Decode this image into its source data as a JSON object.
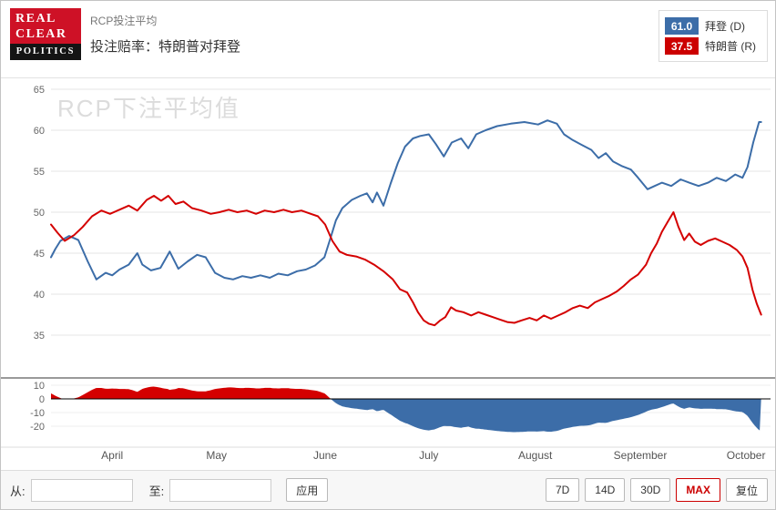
{
  "header": {
    "logo": {
      "line1": "REAL",
      "line2": "CLEAR",
      "line3": "POLITICS",
      "red": "#ce1126",
      "black": "#141414"
    },
    "subtitle": "RCP投注平均",
    "title": "投注赔率：特朗普对拜登",
    "legend": [
      {
        "value": "61.0",
        "label": "拜登 (D)",
        "color": "#3c6da8"
      },
      {
        "value": "37.5",
        "label": "特朗普 (R)",
        "color": "#cc0000"
      }
    ]
  },
  "watermark": "RCP下注平均值",
  "controls": {
    "from_label": "从:",
    "from_value": "",
    "to_label": "至:",
    "to_value": "",
    "apply_label": "应用",
    "range_buttons": [
      "7D",
      "14D",
      "30D",
      "MAX",
      "复位"
    ],
    "active_range": "MAX"
  },
  "chart_data": {
    "type": "line",
    "title": "RCP下注平均值",
    "x_axis": {
      "labels": [
        "April",
        "May",
        "June",
        "July",
        "August",
        "September",
        "October"
      ],
      "positions": [
        8.5,
        23.0,
        38.1,
        52.5,
        67.3,
        81.9,
        96.6
      ]
    },
    "main_y": {
      "ticks": [
        65,
        60,
        55,
        50,
        45,
        40,
        35
      ],
      "min": 35,
      "max": 65
    },
    "spread_y": {
      "ticks": [
        10,
        0,
        -10,
        -20
      ],
      "min": -25,
      "max": 12
    },
    "series": [
      {
        "name": "拜登 (D)",
        "color": "#3c6da8",
        "current": 61.0,
        "points": [
          [
            0,
            44.5
          ],
          [
            0.6,
            45.5
          ],
          [
            1.3,
            46.5
          ],
          [
            2.5,
            47.1
          ],
          [
            3.8,
            46.6
          ],
          [
            5.1,
            44.0
          ],
          [
            6.3,
            41.8
          ],
          [
            7.6,
            42.6
          ],
          [
            8.5,
            42.3
          ],
          [
            9.5,
            43.0
          ],
          [
            10.8,
            43.6
          ],
          [
            12.0,
            45.0
          ],
          [
            12.7,
            43.6
          ],
          [
            13.9,
            42.9
          ],
          [
            15.2,
            43.2
          ],
          [
            16.5,
            45.2
          ],
          [
            17.7,
            43.1
          ],
          [
            19.0,
            44.0
          ],
          [
            20.3,
            44.8
          ],
          [
            21.5,
            44.5
          ],
          [
            22.8,
            42.6
          ],
          [
            24.1,
            42.0
          ],
          [
            25.3,
            41.8
          ],
          [
            26.6,
            42.2
          ],
          [
            27.8,
            42.0
          ],
          [
            29.1,
            42.3
          ],
          [
            30.4,
            42.0
          ],
          [
            31.6,
            42.5
          ],
          [
            32.9,
            42.3
          ],
          [
            34.2,
            42.8
          ],
          [
            35.4,
            43.0
          ],
          [
            36.7,
            43.5
          ],
          [
            38.0,
            44.5
          ],
          [
            38.9,
            47.0
          ],
          [
            39.6,
            49.0
          ],
          [
            40.5,
            50.5
          ],
          [
            41.8,
            51.5
          ],
          [
            43.0,
            52.0
          ],
          [
            43.9,
            52.3
          ],
          [
            44.7,
            51.2
          ],
          [
            45.3,
            52.4
          ],
          [
            46.2,
            50.8
          ],
          [
            47.2,
            53.5
          ],
          [
            48.2,
            56.0
          ],
          [
            49.2,
            58.0
          ],
          [
            50.3,
            59.0
          ],
          [
            51.3,
            59.3
          ],
          [
            52.5,
            59.5
          ],
          [
            53.5,
            58.3
          ],
          [
            54.6,
            56.8
          ],
          [
            55.7,
            58.5
          ],
          [
            57.0,
            59.0
          ],
          [
            58.0,
            57.8
          ],
          [
            59.1,
            59.5
          ],
          [
            60.4,
            60.0
          ],
          [
            62.0,
            60.5
          ],
          [
            63.9,
            60.8
          ],
          [
            65.8,
            61.0
          ],
          [
            67.7,
            60.7
          ],
          [
            69.0,
            61.2
          ],
          [
            70.3,
            60.8
          ],
          [
            71.3,
            59.5
          ],
          [
            72.5,
            58.8
          ],
          [
            73.8,
            58.2
          ],
          [
            75.1,
            57.6
          ],
          [
            76.1,
            56.6
          ],
          [
            77.1,
            57.2
          ],
          [
            78.1,
            56.2
          ],
          [
            79.4,
            55.6
          ],
          [
            80.6,
            55.2
          ],
          [
            81.6,
            54.2
          ],
          [
            82.9,
            52.8
          ],
          [
            83.9,
            53.2
          ],
          [
            84.9,
            53.6
          ],
          [
            86.2,
            53.2
          ],
          [
            87.5,
            54.0
          ],
          [
            88.7,
            53.6
          ],
          [
            90.0,
            53.2
          ],
          [
            91.3,
            53.6
          ],
          [
            92.5,
            54.2
          ],
          [
            93.8,
            53.8
          ],
          [
            95.1,
            54.6
          ],
          [
            96.1,
            54.2
          ],
          [
            96.8,
            55.5
          ],
          [
            97.6,
            58.5
          ],
          [
            98.4,
            61.0
          ],
          [
            98.7,
            61.0
          ]
        ]
      },
      {
        "name": "特朗普 (R)",
        "color": "#d40000",
        "current": 37.5,
        "points": [
          [
            0,
            48.5
          ],
          [
            0.9,
            47.5
          ],
          [
            1.9,
            46.5
          ],
          [
            3.2,
            47.2
          ],
          [
            4.4,
            48.2
          ],
          [
            5.7,
            49.5
          ],
          [
            7.0,
            50.2
          ],
          [
            8.2,
            49.8
          ],
          [
            9.5,
            50.3
          ],
          [
            10.8,
            50.8
          ],
          [
            12.0,
            50.2
          ],
          [
            13.3,
            51.5
          ],
          [
            14.3,
            52.0
          ],
          [
            15.3,
            51.4
          ],
          [
            16.3,
            52.0
          ],
          [
            17.3,
            51.0
          ],
          [
            18.4,
            51.3
          ],
          [
            19.6,
            50.5
          ],
          [
            20.9,
            50.2
          ],
          [
            22.2,
            49.8
          ],
          [
            23.4,
            50.0
          ],
          [
            24.7,
            50.3
          ],
          [
            25.9,
            50.0
          ],
          [
            27.2,
            50.2
          ],
          [
            28.5,
            49.8
          ],
          [
            29.7,
            50.2
          ],
          [
            31.0,
            50.0
          ],
          [
            32.3,
            50.3
          ],
          [
            33.5,
            50.0
          ],
          [
            34.8,
            50.2
          ],
          [
            36.1,
            49.8
          ],
          [
            37.1,
            49.5
          ],
          [
            38.1,
            48.5
          ],
          [
            39.1,
            46.5
          ],
          [
            40.1,
            45.2
          ],
          [
            41.1,
            44.8
          ],
          [
            42.4,
            44.6
          ],
          [
            43.7,
            44.2
          ],
          [
            44.9,
            43.6
          ],
          [
            46.2,
            42.8
          ],
          [
            47.5,
            41.8
          ],
          [
            48.5,
            40.6
          ],
          [
            49.5,
            40.2
          ],
          [
            50.3,
            39.0
          ],
          [
            51.0,
            37.8
          ],
          [
            51.8,
            36.8
          ],
          [
            52.5,
            36.4
          ],
          [
            53.3,
            36.2
          ],
          [
            54.1,
            36.8
          ],
          [
            54.8,
            37.2
          ],
          [
            55.6,
            38.4
          ],
          [
            56.3,
            38.0
          ],
          [
            57.3,
            37.8
          ],
          [
            58.4,
            37.4
          ],
          [
            59.4,
            37.8
          ],
          [
            60.4,
            37.5
          ],
          [
            61.4,
            37.2
          ],
          [
            62.4,
            36.9
          ],
          [
            63.4,
            36.6
          ],
          [
            64.4,
            36.5
          ],
          [
            65.4,
            36.8
          ],
          [
            66.5,
            37.1
          ],
          [
            67.5,
            36.8
          ],
          [
            68.5,
            37.4
          ],
          [
            69.5,
            37.0
          ],
          [
            70.5,
            37.4
          ],
          [
            71.5,
            37.8
          ],
          [
            72.5,
            38.3
          ],
          [
            73.5,
            38.6
          ],
          [
            74.6,
            38.3
          ],
          [
            75.6,
            39.0
          ],
          [
            76.6,
            39.4
          ],
          [
            77.6,
            39.8
          ],
          [
            78.6,
            40.3
          ],
          [
            79.6,
            41.0
          ],
          [
            80.6,
            41.8
          ],
          [
            81.6,
            42.4
          ],
          [
            82.7,
            43.6
          ],
          [
            83.4,
            45.0
          ],
          [
            84.2,
            46.2
          ],
          [
            84.9,
            47.6
          ],
          [
            85.7,
            48.8
          ],
          [
            86.5,
            50.0
          ],
          [
            87.2,
            48.2
          ],
          [
            88.0,
            46.6
          ],
          [
            88.7,
            47.4
          ],
          [
            89.5,
            46.4
          ],
          [
            90.3,
            46.0
          ],
          [
            91.3,
            46.5
          ],
          [
            92.3,
            46.8
          ],
          [
            93.3,
            46.4
          ],
          [
            94.3,
            46.0
          ],
          [
            95.3,
            45.4
          ],
          [
            96.1,
            44.6
          ],
          [
            96.8,
            43.2
          ],
          [
            97.5,
            40.5
          ],
          [
            98.1,
            38.8
          ],
          [
            98.7,
            37.5
          ]
        ]
      }
    ],
    "spread": {
      "description": "特朗普 - 拜登",
      "positive_color": "#d40000",
      "negative_color": "#3c6da8"
    }
  }
}
